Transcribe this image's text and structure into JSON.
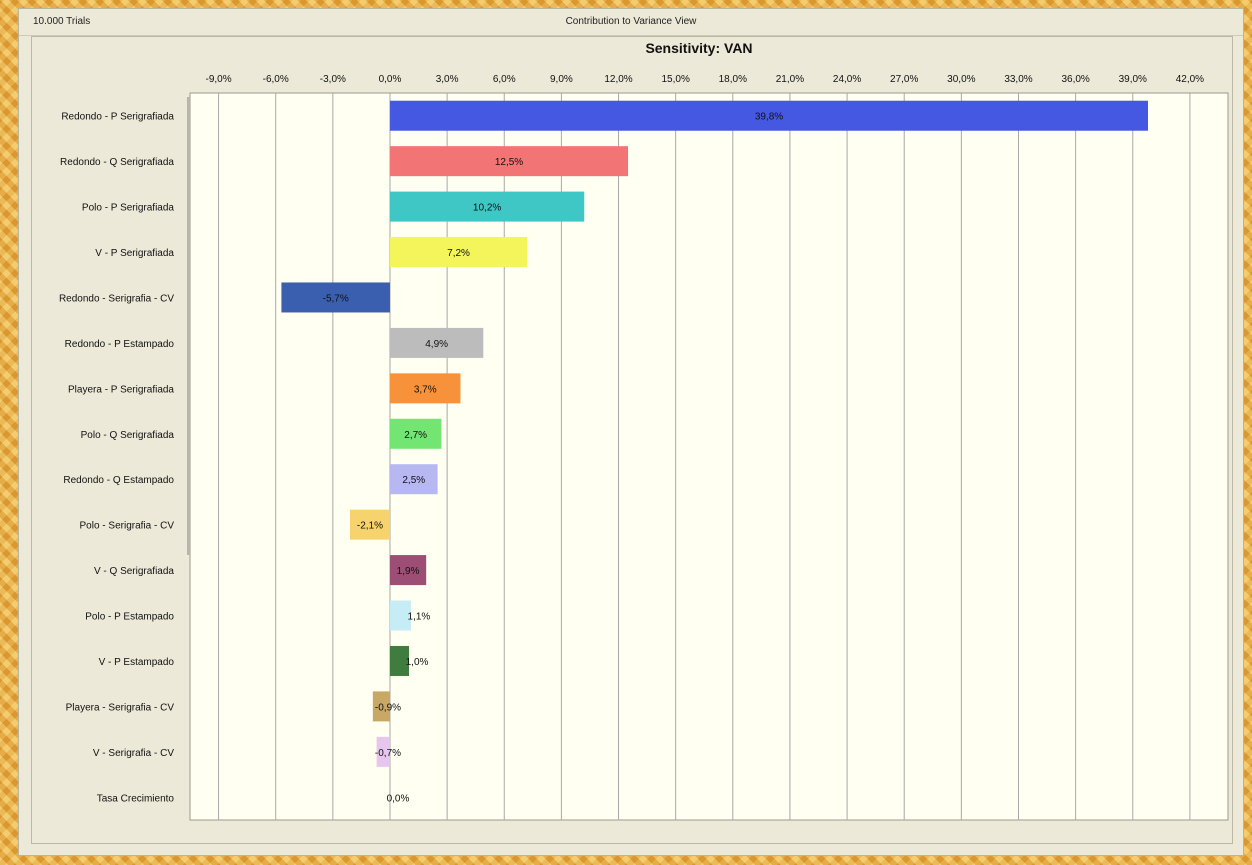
{
  "window": {
    "trials_label": "10.000 Trials",
    "view_title": "Contribution to Variance View"
  },
  "chart_data": {
    "type": "bar",
    "orientation": "horizontal",
    "title": "Sensitivity: VAN",
    "xlabel": "",
    "ylabel": "",
    "xlim": [
      -10.5,
      44.0
    ],
    "xticks": [
      -9,
      -6,
      -3,
      0,
      3,
      6,
      9,
      12,
      15,
      18,
      21,
      24,
      27,
      30,
      33,
      36,
      39,
      42
    ],
    "xtick_labels": [
      "-9,0%",
      "-6,0%",
      "-3,0%",
      "0,0%",
      "3,0%",
      "6,0%",
      "9,0%",
      "12,0%",
      "15,0%",
      "18,0%",
      "21,0%",
      "24,0%",
      "27,0%",
      "30,0%",
      "33,0%",
      "36,0%",
      "39,0%",
      "42,0%"
    ],
    "grid": true,
    "categories": [
      "Redondo - P Serigrafiada",
      "Redondo - Q Serigrafiada",
      "Polo - P Serigrafiada",
      "V - P Serigrafiada",
      "Redondo - Serigrafia - CV",
      "Redondo - P Estampado",
      "Playera - P Serigrafiada",
      "Polo - Q Serigrafiada",
      "Redondo - Q Estampado",
      "Polo - Serigrafia - CV",
      "V - Q Serigrafiada",
      "Polo - P Estampado",
      "V - P Estampado",
      "Playera - Serigrafia - CV",
      "V - Serigrafia - CV",
      "Tasa Crecimiento"
    ],
    "values": [
      39.8,
      12.5,
      10.2,
      7.2,
      -5.7,
      4.9,
      3.7,
      2.7,
      2.5,
      -2.1,
      1.9,
      1.1,
      1.0,
      -0.9,
      -0.7,
      0.0
    ],
    "data_labels": [
      "39,8%",
      "12,5%",
      "10,2%",
      "7,2%",
      "-5,7%",
      "4,9%",
      "3,7%",
      "2,7%",
      "2,5%",
      "-2,1%",
      "1,9%",
      "1,1%",
      "1,0%",
      "-0,9%",
      "-0,7%",
      "0,0%"
    ],
    "colors": [
      "#4558e2",
      "#f27474",
      "#3ec7c4",
      "#f4f55a",
      "#3a5fae",
      "#bcbcbc",
      "#f7923b",
      "#72e572",
      "#b7b7f2",
      "#f6d36d",
      "#9c4e74",
      "#c6ecf6",
      "#3f7d3f",
      "#c9a866",
      "#e6c5ee",
      "#ffffff"
    ]
  }
}
